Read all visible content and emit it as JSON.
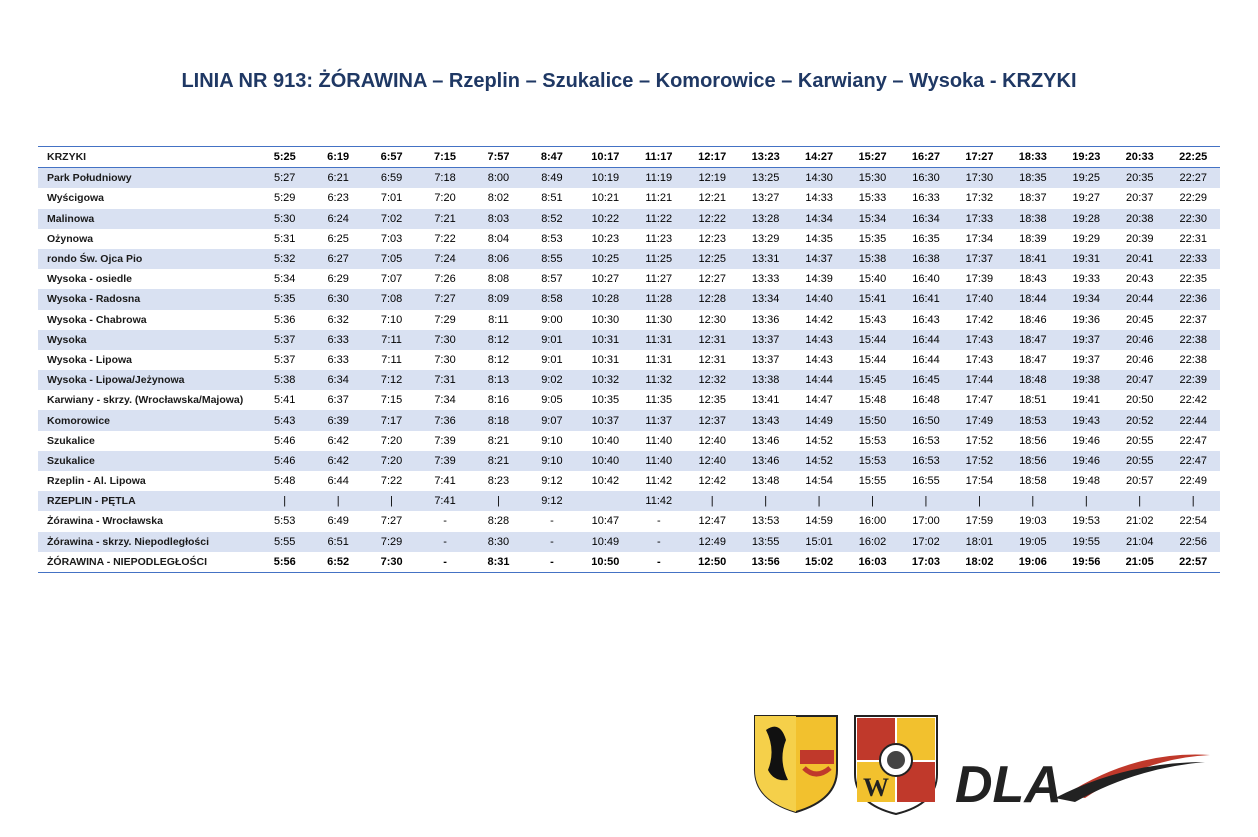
{
  "title": "LINIA NR 913: ŻÓRAWINA – Rzeplin – Szukalice – Komorowice – Karwiany – Wysoka - KRZYKI",
  "table": {
    "rows": [
      {
        "stop": "KRZYKI",
        "times": [
          "5:25",
          "6:19",
          "6:57",
          "7:15",
          "7:57",
          "8:47",
          "10:17",
          "11:17",
          "12:17",
          "13:23",
          "14:27",
          "15:27",
          "16:27",
          "17:27",
          "18:33",
          "19:23",
          "20:33",
          "22:25"
        ]
      },
      {
        "stop": "Park Południowy",
        "times": [
          "5:27",
          "6:21",
          "6:59",
          "7:18",
          "8:00",
          "8:49",
          "10:19",
          "11:19",
          "12:19",
          "13:25",
          "14:30",
          "15:30",
          "16:30",
          "17:30",
          "18:35",
          "19:25",
          "20:35",
          "22:27"
        ]
      },
      {
        "stop": "Wyścigowa",
        "times": [
          "5:29",
          "6:23",
          "7:01",
          "7:20",
          "8:02",
          "8:51",
          "10:21",
          "11:21",
          "12:21",
          "13:27",
          "14:33",
          "15:33",
          "16:33",
          "17:32",
          "18:37",
          "19:27",
          "20:37",
          "22:29"
        ]
      },
      {
        "stop": "Malinowa",
        "times": [
          "5:30",
          "6:24",
          "7:02",
          "7:21",
          "8:03",
          "8:52",
          "10:22",
          "11:22",
          "12:22",
          "13:28",
          "14:34",
          "15:34",
          "16:34",
          "17:33",
          "18:38",
          "19:28",
          "20:38",
          "22:30"
        ]
      },
      {
        "stop": "Ożynowa",
        "times": [
          "5:31",
          "6:25",
          "7:03",
          "7:22",
          "8:04",
          "8:53",
          "10:23",
          "11:23",
          "12:23",
          "13:29",
          "14:35",
          "15:35",
          "16:35",
          "17:34",
          "18:39",
          "19:29",
          "20:39",
          "22:31"
        ]
      },
      {
        "stop": "rondo Św. Ojca Pio",
        "times": [
          "5:32",
          "6:27",
          "7:05",
          "7:24",
          "8:06",
          "8:55",
          "10:25",
          "11:25",
          "12:25",
          "13:31",
          "14:37",
          "15:38",
          "16:38",
          "17:37",
          "18:41",
          "19:31",
          "20:41",
          "22:33"
        ]
      },
      {
        "stop": "Wysoka - osiedle",
        "times": [
          "5:34",
          "6:29",
          "7:07",
          "7:26",
          "8:08",
          "8:57",
          "10:27",
          "11:27",
          "12:27",
          "13:33",
          "14:39",
          "15:40",
          "16:40",
          "17:39",
          "18:43",
          "19:33",
          "20:43",
          "22:35"
        ]
      },
      {
        "stop": "Wysoka - Radosna",
        "times": [
          "5:35",
          "6:30",
          "7:08",
          "7:27",
          "8:09",
          "8:58",
          "10:28",
          "11:28",
          "12:28",
          "13:34",
          "14:40",
          "15:41",
          "16:41",
          "17:40",
          "18:44",
          "19:34",
          "20:44",
          "22:36"
        ]
      },
      {
        "stop": "Wysoka - Chabrowa",
        "times": [
          "5:36",
          "6:32",
          "7:10",
          "7:29",
          "8:11",
          "9:00",
          "10:30",
          "11:30",
          "12:30",
          "13:36",
          "14:42",
          "15:43",
          "16:43",
          "17:42",
          "18:46",
          "19:36",
          "20:45",
          "22:37"
        ]
      },
      {
        "stop": "Wysoka",
        "times": [
          "5:37",
          "6:33",
          "7:11",
          "7:30",
          "8:12",
          "9:01",
          "10:31",
          "11:31",
          "12:31",
          "13:37",
          "14:43",
          "15:44",
          "16:44",
          "17:43",
          "18:47",
          "19:37",
          "20:46",
          "22:38"
        ]
      },
      {
        "stop": "Wysoka - Lipowa",
        "times": [
          "5:37",
          "6:33",
          "7:11",
          "7:30",
          "8:12",
          "9:01",
          "10:31",
          "11:31",
          "12:31",
          "13:37",
          "14:43",
          "15:44",
          "16:44",
          "17:43",
          "18:47",
          "19:37",
          "20:46",
          "22:38"
        ]
      },
      {
        "stop": "Wysoka - Lipowa/Jeżynowa",
        "times": [
          "5:38",
          "6:34",
          "7:12",
          "7:31",
          "8:13",
          "9:02",
          "10:32",
          "11:32",
          "12:32",
          "13:38",
          "14:44",
          "15:45",
          "16:45",
          "17:44",
          "18:48",
          "19:38",
          "20:47",
          "22:39"
        ]
      },
      {
        "stop": "Karwiany - skrzy. (Wrocławska/Majowa)",
        "times": [
          "5:41",
          "6:37",
          "7:15",
          "7:34",
          "8:16",
          "9:05",
          "10:35",
          "11:35",
          "12:35",
          "13:41",
          "14:47",
          "15:48",
          "16:48",
          "17:47",
          "18:51",
          "19:41",
          "20:50",
          "22:42"
        ]
      },
      {
        "stop": "Komorowice",
        "times": [
          "5:43",
          "6:39",
          "7:17",
          "7:36",
          "8:18",
          "9:07",
          "10:37",
          "11:37",
          "12:37",
          "13:43",
          "14:49",
          "15:50",
          "16:50",
          "17:49",
          "18:53",
          "19:43",
          "20:52",
          "22:44"
        ]
      },
      {
        "stop": "Szukalice",
        "times": [
          "5:46",
          "6:42",
          "7:20",
          "7:39",
          "8:21",
          "9:10",
          "10:40",
          "11:40",
          "12:40",
          "13:46",
          "14:52",
          "15:53",
          "16:53",
          "17:52",
          "18:56",
          "19:46",
          "20:55",
          "22:47"
        ]
      },
      {
        "stop": "Szukalice",
        "times": [
          "5:46",
          "6:42",
          "7:20",
          "7:39",
          "8:21",
          "9:10",
          "10:40",
          "11:40",
          "12:40",
          "13:46",
          "14:52",
          "15:53",
          "16:53",
          "17:52",
          "18:56",
          "19:46",
          "20:55",
          "22:47"
        ]
      },
      {
        "stop": "Rzeplin - Al. Lipowa",
        "times": [
          "5:48",
          "6:44",
          "7:22",
          "7:41",
          "8:23",
          "9:12",
          "10:42",
          "11:42",
          "12:42",
          "13:48",
          "14:54",
          "15:55",
          "16:55",
          "17:54",
          "18:58",
          "19:48",
          "20:57",
          "22:49"
        ]
      },
      {
        "stop": "RZEPLIN - PĘTLA",
        "times": [
          "|",
          "|",
          "|",
          "7:41",
          "|",
          "9:12",
          null,
          "11:42",
          "|",
          "|",
          "|",
          "|",
          "|",
          "|",
          "|",
          "|",
          "|",
          "|"
        ]
      },
      {
        "stop": "Żórawina - Wrocławska",
        "times": [
          "5:53",
          "6:49",
          "7:27",
          "-",
          "8:28",
          "-",
          "10:47",
          "-",
          "12:47",
          "13:53",
          "14:59",
          "16:00",
          "17:00",
          "17:59",
          "19:03",
          "19:53",
          "21:02",
          "22:54"
        ]
      },
      {
        "stop": "Żórawina - skrzy. Niepodległości",
        "times": [
          "5:55",
          "6:51",
          "7:29",
          "-",
          "8:30",
          "-",
          "10:49",
          "-",
          "12:49",
          "13:55",
          "15:01",
          "16:02",
          "17:02",
          "18:01",
          "19:05",
          "19:55",
          "21:04",
          "22:56"
        ]
      },
      {
        "stop": "ŻÓRAWINA - NIEPODLEGŁOŚCI",
        "times": [
          "5:56",
          "6:52",
          "7:30",
          "-",
          "8:31",
          "-",
          "10:50",
          "-",
          "12:50",
          "13:56",
          "15:02",
          "16:03",
          "17:03",
          "18:02",
          "19:06",
          "19:56",
          "21:05",
          "22:57"
        ]
      }
    ]
  },
  "logos": {
    "dla": "DLA"
  }
}
